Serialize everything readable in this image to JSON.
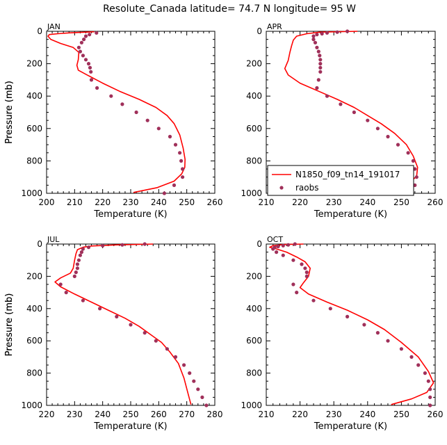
{
  "title": "Resolute_Canada   latitude= 74.7 N longitude= 95 W",
  "colors": {
    "model": "#ff0000",
    "obs": "#a0305a"
  },
  "legend": {
    "model": "N1850_f09_tn14_191017",
    "obs": "raobs"
  },
  "chart_data": [
    {
      "type": "line",
      "month": "JAN",
      "xlabel": "Temperature (K)",
      "ylabel": "Pressure (mb)",
      "xlim": [
        200,
        260
      ],
      "ylim": [
        1000,
        0
      ],
      "xticks": [
        200,
        210,
        220,
        230,
        240,
        250,
        260
      ],
      "yticks": [
        0,
        200,
        400,
        600,
        800,
        1000
      ],
      "model": [
        [
          217,
          3
        ],
        [
          212,
          7
        ],
        [
          208,
          10
        ],
        [
          204,
          15
        ],
        [
          201,
          20
        ],
        [
          200.5,
          30
        ],
        [
          201.5,
          50
        ],
        [
          205,
          75
        ],
        [
          209.5,
          100
        ],
        [
          211.5,
          130
        ],
        [
          211.3,
          175
        ],
        [
          210.8,
          210
        ],
        [
          211.3,
          240
        ],
        [
          214.5,
          270
        ],
        [
          220,
          320
        ],
        [
          226,
          370
        ],
        [
          233,
          420
        ],
        [
          239,
          470
        ],
        [
          243,
          520
        ],
        [
          245.5,
          570
        ],
        [
          247.5,
          640
        ],
        [
          248.7,
          720
        ],
        [
          249.4,
          790
        ],
        [
          249.3,
          840
        ],
        [
          248.2,
          880
        ],
        [
          245.5,
          925
        ],
        [
          239.5,
          965
        ],
        [
          231,
          995
        ]
      ],
      "obs": [
        [
          217.8,
          10
        ],
        [
          215.3,
          20
        ],
        [
          214,
          30
        ],
        [
          213.3,
          50
        ],
        [
          212.5,
          70
        ],
        [
          211.5,
          100
        ],
        [
          212,
          125
        ],
        [
          213,
          150
        ],
        [
          214,
          175
        ],
        [
          215,
          200
        ],
        [
          215.5,
          225
        ],
        [
          215.8,
          250
        ],
        [
          216,
          300
        ],
        [
          218,
          350
        ],
        [
          223,
          400
        ],
        [
          227,
          450
        ],
        [
          232,
          500
        ],
        [
          236,
          550
        ],
        [
          240,
          600
        ],
        [
          244,
          650
        ],
        [
          246,
          700
        ],
        [
          247.5,
          750
        ],
        [
          248,
          800
        ],
        [
          248.5,
          850
        ],
        [
          248.5,
          900
        ],
        [
          245.5,
          950
        ],
        [
          242,
          1000
        ]
      ]
    },
    {
      "type": "line",
      "month": "APR",
      "xlabel": "Temperature (K)",
      "ylabel": "Pressure (mb)",
      "xlim": [
        210,
        260
      ],
      "ylim": [
        1000,
        0
      ],
      "xticks": [
        210,
        220,
        230,
        240,
        250,
        260
      ],
      "yticks": [
        0,
        200,
        400,
        600,
        800,
        1000
      ],
      "model": [
        [
          237,
          0
        ],
        [
          226,
          5
        ],
        [
          222,
          15
        ],
        [
          219,
          30
        ],
        [
          218,
          55
        ],
        [
          217.5,
          90
        ],
        [
          217,
          130
        ],
        [
          216.5,
          180
        ],
        [
          215.5,
          230
        ],
        [
          216.5,
          270
        ],
        [
          220,
          320
        ],
        [
          225.5,
          370
        ],
        [
          231,
          420
        ],
        [
          236,
          470
        ],
        [
          240,
          520
        ],
        [
          244,
          570
        ],
        [
          248,
          630
        ],
        [
          251.5,
          700
        ],
        [
          253.5,
          770
        ],
        [
          254.8,
          840
        ],
        [
          254.5,
          895
        ],
        [
          251.5,
          950
        ],
        [
          249,
          990
        ]
      ],
      "obs": [
        [
          234,
          0
        ],
        [
          231,
          5
        ],
        [
          228,
          10
        ],
        [
          226.5,
          15
        ],
        [
          225,
          20
        ],
        [
          224,
          30
        ],
        [
          224,
          50
        ],
        [
          224.5,
          70
        ],
        [
          225,
          100
        ],
        [
          225.5,
          125
        ],
        [
          225.8,
          150
        ],
        [
          226,
          175
        ],
        [
          226,
          200
        ],
        [
          226,
          225
        ],
        [
          226,
          250
        ],
        [
          225.5,
          300
        ],
        [
          225,
          350
        ],
        [
          228,
          400
        ],
        [
          232,
          450
        ],
        [
          236,
          500
        ],
        [
          240,
          550
        ],
        [
          243,
          600
        ],
        [
          246,
          650
        ],
        [
          249,
          700
        ],
        [
          252,
          750
        ],
        [
          253.5,
          800
        ],
        [
          254,
          850
        ],
        [
          254.5,
          900
        ],
        [
          254,
          950
        ],
        [
          250.5,
          1000
        ]
      ]
    },
    {
      "type": "line",
      "month": "JUL",
      "xlabel": "Temperature (K)",
      "ylabel": "Pressure (mb)",
      "xlim": [
        220,
        280
      ],
      "ylim": [
        1000,
        0
      ],
      "xticks": [
        220,
        230,
        240,
        250,
        260,
        270,
        280
      ],
      "yticks": [
        0,
        200,
        400,
        600,
        800,
        1000
      ],
      "model": [
        [
          258,
          0
        ],
        [
          245,
          5
        ],
        [
          236,
          12
        ],
        [
          233,
          20
        ],
        [
          231,
          35
        ],
        [
          230.5,
          60
        ],
        [
          230,
          100
        ],
        [
          229.5,
          150
        ],
        [
          228.5,
          180
        ],
        [
          225,
          210
        ],
        [
          223,
          235
        ],
        [
          225,
          265
        ],
        [
          230,
          310
        ],
        [
          236,
          360
        ],
        [
          242,
          410
        ],
        [
          248,
          460
        ],
        [
          253,
          510
        ],
        [
          257,
          560
        ],
        [
          261,
          610
        ],
        [
          264,
          670
        ],
        [
          267,
          740
        ],
        [
          269,
          830
        ],
        [
          270.5,
          930
        ],
        [
          271.5,
          995
        ]
      ],
      "obs": [
        [
          255,
          0
        ],
        [
          247,
          5
        ],
        [
          240,
          10
        ],
        [
          235,
          20
        ],
        [
          233,
          30
        ],
        [
          232.5,
          50
        ],
        [
          232,
          70
        ],
        [
          231.5,
          100
        ],
        [
          231,
          125
        ],
        [
          231,
          150
        ],
        [
          230.5,
          175
        ],
        [
          230,
          200
        ],
        [
          225,
          250
        ],
        [
          227,
          300
        ],
        [
          233,
          350
        ],
        [
          239,
          400
        ],
        [
          245,
          450
        ],
        [
          250,
          500
        ],
        [
          255,
          550
        ],
        [
          259,
          600
        ],
        [
          263,
          650
        ],
        [
          266,
          700
        ],
        [
          269,
          750
        ],
        [
          271,
          800
        ],
        [
          272.5,
          850
        ],
        [
          274,
          900
        ],
        [
          275.5,
          950
        ],
        [
          277,
          1000
        ]
      ]
    },
    {
      "type": "line",
      "month": "OCT",
      "xlabel": "Temperature (K)",
      "ylabel": "Pressure (mb)",
      "xlim": [
        210,
        260
      ],
      "ylim": [
        1000,
        0
      ],
      "xticks": [
        210,
        220,
        230,
        240,
        250,
        260
      ],
      "yticks": [
        0,
        200,
        400,
        600,
        800,
        1000
      ],
      "model": [
        [
          221,
          0
        ],
        [
          215,
          3
        ],
        [
          212,
          10
        ],
        [
          211,
          20
        ],
        [
          213,
          30
        ],
        [
          216,
          50
        ],
        [
          219,
          80
        ],
        [
          221.5,
          110
        ],
        [
          223,
          150
        ],
        [
          222.5,
          200
        ],
        [
          221,
          240
        ],
        [
          220,
          270
        ],
        [
          222.5,
          310
        ],
        [
          228,
          360
        ],
        [
          234,
          410
        ],
        [
          240,
          470
        ],
        [
          245,
          530
        ],
        [
          250,
          610
        ],
        [
          255,
          700
        ],
        [
          258,
          790
        ],
        [
          259.5,
          860
        ],
        [
          257.5,
          920
        ],
        [
          253,
          960
        ],
        [
          247,
          995
        ]
      ],
      "obs": [
        [
          218.5,
          0
        ],
        [
          216.5,
          5
        ],
        [
          215,
          10
        ],
        [
          213.5,
          15
        ],
        [
          212.5,
          20
        ],
        [
          212,
          30
        ],
        [
          213,
          50
        ],
        [
          215,
          70
        ],
        [
          218,
          100
        ],
        [
          220.5,
          125
        ],
        [
          221.5,
          150
        ],
        [
          222,
          175
        ],
        [
          222,
          200
        ],
        [
          218,
          250
        ],
        [
          219,
          300
        ],
        [
          224,
          350
        ],
        [
          229,
          400
        ],
        [
          234,
          450
        ],
        [
          239,
          500
        ],
        [
          243,
          550
        ],
        [
          246,
          600
        ],
        [
          250,
          650
        ],
        [
          253,
          700
        ],
        [
          255,
          750
        ],
        [
          257,
          800
        ],
        [
          258,
          850
        ],
        [
          258.5,
          900
        ],
        [
          258.5,
          950
        ],
        [
          258.5,
          1000
        ]
      ]
    }
  ]
}
